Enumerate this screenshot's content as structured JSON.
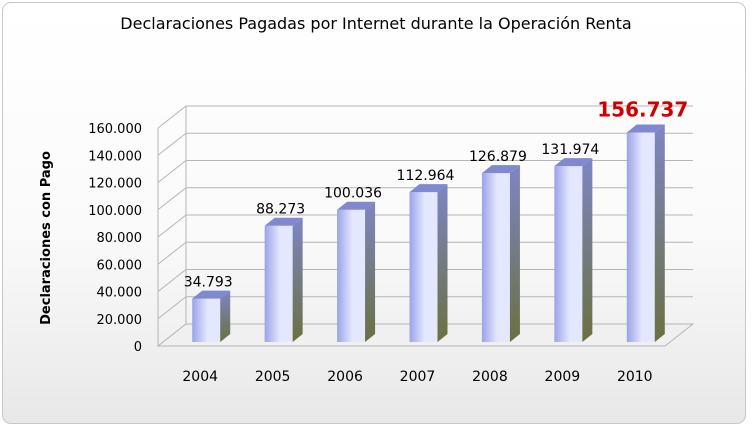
{
  "chart_data": {
    "type": "bar",
    "title": "Declaraciones Pagadas por Internet durante la Operación Renta",
    "ylabel": "Declaraciones con Pago",
    "xlabel": "",
    "categories": [
      "2004",
      "2005",
      "2006",
      "2007",
      "2008",
      "2009",
      "2010"
    ],
    "values": [
      34793,
      88273,
      100036,
      112964,
      126879,
      131974,
      156737
    ],
    "value_labels": [
      "34.793",
      "88.273",
      "100.036",
      "112.964",
      "126.879",
      "131.974",
      "156.737"
    ],
    "yticks": [
      "0",
      "20.000",
      "40.000",
      "60.000",
      "80.000",
      "100.000",
      "120.000",
      "140.000",
      "160.000"
    ],
    "ylim": [
      0,
      160000
    ],
    "grid": true,
    "legend": "none",
    "highlight_index": 6,
    "colors": {
      "bar_front_light": "#e4e8ff",
      "bar_front_dark": "#9aa3e8",
      "bar_side": "#6f79b8",
      "bar_top": "#8088d0",
      "highlight_label": "#d00000",
      "grid": "#b5b5b5"
    }
  }
}
